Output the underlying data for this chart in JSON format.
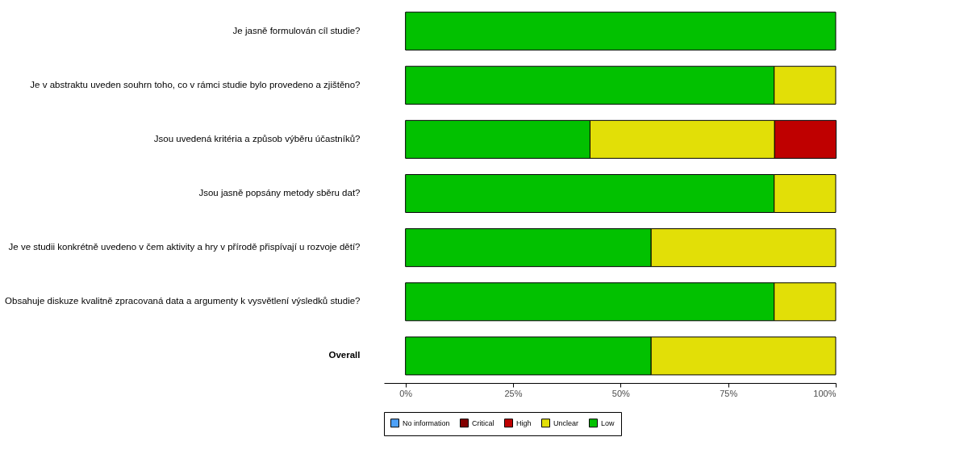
{
  "chart_data": {
    "type": "bar",
    "orientation": "horizontal",
    "stacked": true,
    "categories": [
      "Je jasně formulován cíl studie?",
      "Je v abstraktu uveden souhrn toho, co v rámci studie bylo provedeno a zjištěno?",
      "Jsou uvedená kritéria a způsob výběru účastníků?",
      "Jsou jasně popsány metody sběru dat?",
      "Je ve studii konkrétně uvedeno v čem aktivity a hry v přírodě přispívají u rozvoje dětí?",
      "Obsahuje diskuze kvalitně zpracovaná data a argumenty k vysvětlení výsledků studie?",
      "Overall"
    ],
    "series": [
      {
        "name": "Low",
        "color": "#02c100",
        "values": [
          100,
          85.7,
          42.9,
          85.7,
          57.1,
          85.7,
          57.1
        ]
      },
      {
        "name": "Unclear",
        "color": "#e2df07",
        "values": [
          0,
          14.3,
          42.9,
          14.3,
          42.9,
          14.3,
          42.9
        ]
      },
      {
        "name": "High",
        "color": "#bf0000",
        "values": [
          0,
          0,
          14.3,
          0,
          0,
          0,
          0
        ]
      },
      {
        "name": "Critical",
        "color": "#820000",
        "values": [
          0,
          0,
          0,
          0,
          0,
          0,
          0
        ]
      },
      {
        "name": "No information",
        "color": "#4ea1f7",
        "values": [
          0,
          0,
          0,
          0,
          0,
          0,
          0
        ]
      }
    ],
    "xlim": [
      -5,
      100
    ],
    "xticks": [
      {
        "value": 0,
        "label": "0%"
      },
      {
        "value": 25,
        "label": "25%"
      },
      {
        "value": 50,
        "label": "50%"
      },
      {
        "value": 75,
        "label": "75%"
      },
      {
        "value": 100,
        "label": "100%"
      }
    ],
    "grid": false,
    "legend": "bottom"
  }
}
